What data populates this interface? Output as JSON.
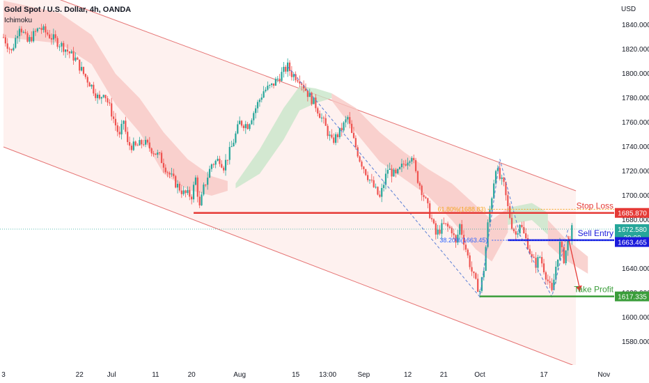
{
  "header": {
    "title": "Gold Spot / U.S. Dollar, 4h, OANDA",
    "indicator": "Ichimoku",
    "currency": "USD"
  },
  "chart_data": {
    "type": "candlestick",
    "ylim": [
      1560,
      1860
    ],
    "y_ticks": [
      "1840.000",
      "1820.000",
      "1800.000",
      "1780.000",
      "1760.000",
      "1740.000",
      "1720.000",
      "1700.000",
      "1680.000",
      "1660.000",
      "1640.000",
      "1620.000",
      "1600.000",
      "1580.000"
    ],
    "x_ticks": [
      {
        "label": "3",
        "day": 0
      },
      {
        "label": "22",
        "day": 19
      },
      {
        "label": "Jul",
        "day": 27
      },
      {
        "label": "11",
        "day": 38
      },
      {
        "label": "20",
        "day": 47
      },
      {
        "label": "Aug",
        "day": 59
      },
      {
        "label": "15",
        "day": 73
      },
      {
        "label": "13:00",
        "day": 81
      },
      {
        "label": "Sep",
        "day": 90
      },
      {
        "label": "12",
        "day": 101
      },
      {
        "label": "21",
        "day": 110
      },
      {
        "label": "Oct",
        "day": 119
      },
      {
        "label": "17",
        "day": 135
      },
      {
        "label": "Nov",
        "day": 150
      }
    ],
    "levels": [
      {
        "name": "Stop Loss",
        "label": "Stop Loss",
        "value": 1685.87,
        "tag": "1685.870",
        "color": "#e53935"
      },
      {
        "name": "Sell Entry",
        "label": "Sell Entry",
        "value": 1663.465,
        "tag": "1663.465",
        "color": "#1a1adb"
      },
      {
        "name": "Take Profit",
        "label": "Take Profit",
        "value": 1617.335,
        "tag": "1617.335",
        "color": "#3a9d3a"
      }
    ],
    "fib": [
      {
        "label": "61.80%(1688.83)",
        "value": 1688.83,
        "color": "#f5a623"
      },
      {
        "label": "38.20%(1663.45)",
        "value": 1663.45,
        "color": "#2962ff"
      }
    ],
    "current_price": {
      "value": 1672.58,
      "tag": "1672.580",
      "countdown": "20:08",
      "color": "#26a69a"
    },
    "channel": {
      "upper": [
        [
          0,
          1878
        ],
        [
          143,
          1704
        ]
      ],
      "lower": [
        [
          0,
          1740
        ],
        [
          143,
          1560
        ]
      ]
    },
    "colors": {
      "up": "#26a69a",
      "down": "#ef5350",
      "cloud_bear": "#f8c8c4",
      "cloud_bull": "#c8e6c9",
      "channel_fill": "#fdecea",
      "channel_line": "#e57373"
    },
    "price_path": [
      [
        0,
        1830
      ],
      [
        2,
        1818
      ],
      [
        4,
        1840
      ],
      [
        6,
        1826
      ],
      [
        9,
        1838
      ],
      [
        12,
        1830
      ],
      [
        15,
        1822
      ],
      [
        18,
        1812
      ],
      [
        20,
        1800
      ],
      [
        22,
        1790
      ],
      [
        24,
        1778
      ],
      [
        25,
        1786
      ],
      [
        27,
        1768
      ],
      [
        29,
        1748
      ],
      [
        30,
        1762
      ],
      [
        31,
        1742
      ],
      [
        33,
        1740
      ],
      [
        35,
        1744
      ],
      [
        37,
        1738
      ],
      [
        39,
        1732
      ],
      [
        41,
        1720
      ],
      [
        43,
        1710
      ],
      [
        45,
        1702
      ],
      [
        47,
        1700
      ],
      [
        48,
        1714
      ],
      [
        49,
        1690
      ],
      [
        50,
        1706
      ],
      [
        52,
        1726
      ],
      [
        54,
        1730
      ],
      [
        55,
        1724
      ],
      [
        57,
        1740
      ],
      [
        59,
        1760
      ],
      [
        61,
        1758
      ],
      [
        63,
        1772
      ],
      [
        65,
        1786
      ],
      [
        67,
        1790
      ],
      [
        69,
        1798
      ],
      [
        71,
        1806
      ],
      [
        72,
        1800
      ],
      [
        74,
        1796
      ],
      [
        76,
        1784
      ],
      [
        78,
        1774
      ],
      [
        80,
        1760
      ],
      [
        82,
        1744
      ],
      [
        84,
        1752
      ],
      [
        86,
        1764
      ],
      [
        87,
        1750
      ],
      [
        89,
        1730
      ],
      [
        91,
        1716
      ],
      [
        93,
        1704
      ],
      [
        94,
        1698
      ],
      [
        96,
        1722
      ],
      [
        98,
        1716
      ],
      [
        100,
        1726
      ],
      [
        102,
        1734
      ],
      [
        103,
        1718
      ],
      [
        105,
        1700
      ],
      [
        107,
        1680
      ],
      [
        108,
        1668
      ],
      [
        110,
        1676
      ],
      [
        112,
        1672
      ],
      [
        113,
        1660
      ],
      [
        114,
        1676
      ],
      [
        116,
        1650
      ],
      [
        117,
        1638
      ],
      [
        118,
        1628
      ],
      [
        119,
        1622
      ],
      [
        120,
        1640
      ],
      [
        121,
        1676
      ],
      [
        122,
        1700
      ],
      [
        123,
        1724
      ],
      [
        124,
        1714
      ],
      [
        125,
        1708
      ],
      [
        126,
        1690
      ],
      [
        127,
        1676
      ],
      [
        128,
        1668
      ],
      [
        129,
        1678
      ],
      [
        130,
        1668
      ],
      [
        131,
        1660
      ],
      [
        132,
        1648
      ],
      [
        133,
        1644
      ],
      [
        134,
        1650
      ],
      [
        135,
        1640
      ],
      [
        136,
        1630
      ],
      [
        137,
        1620
      ],
      [
        138,
        1642
      ],
      [
        139,
        1660
      ],
      [
        140,
        1648
      ],
      [
        141,
        1662
      ],
      [
        142,
        1672
      ]
    ],
    "cloud_bear": [
      [
        0,
        1860,
        1830
      ],
      [
        14,
        1850,
        1825
      ],
      [
        22,
        1832,
        1808
      ],
      [
        28,
        1800,
        1775
      ],
      [
        34,
        1780,
        1752
      ],
      [
        40,
        1752,
        1718
      ],
      [
        46,
        1730,
        1705
      ],
      [
        52,
        1716,
        1700
      ],
      [
        56,
        1712,
        1704
      ]
    ],
    "cloud_bull": [
      [
        58,
        1710,
        1706
      ],
      [
        64,
        1738,
        1718
      ],
      [
        70,
        1772,
        1746
      ],
      [
        74,
        1790,
        1770
      ],
      [
        78,
        1788,
        1776
      ],
      [
        82,
        1784,
        1780
      ]
    ],
    "cloud_bear2": [
      [
        82,
        1784,
        1778
      ],
      [
        88,
        1772,
        1752
      ],
      [
        94,
        1752,
        1728
      ],
      [
        100,
        1736,
        1714
      ],
      [
        106,
        1722,
        1700
      ],
      [
        112,
        1710,
        1680
      ],
      [
        118,
        1692,
        1656
      ],
      [
        122,
        1680,
        1646
      ],
      [
        126,
        1690,
        1670
      ]
    ],
    "cloud_bull2": [
      [
        126,
        1690,
        1676
      ],
      [
        132,
        1694,
        1680
      ],
      [
        136,
        1686,
        1668
      ]
    ],
    "cloud_bear3": [
      [
        136,
        1680,
        1660
      ],
      [
        140,
        1666,
        1648
      ],
      [
        146,
        1650,
        1636
      ]
    ],
    "zigzag": [
      [
        71,
        1806
      ],
      [
        119,
        1617
      ],
      [
        124,
        1730
      ],
      [
        129,
        1668
      ],
      [
        137,
        1617
      ],
      [
        141,
        1672
      ]
    ],
    "projection": [
      [
        141,
        1667
      ],
      [
        144,
        1623
      ]
    ]
  }
}
